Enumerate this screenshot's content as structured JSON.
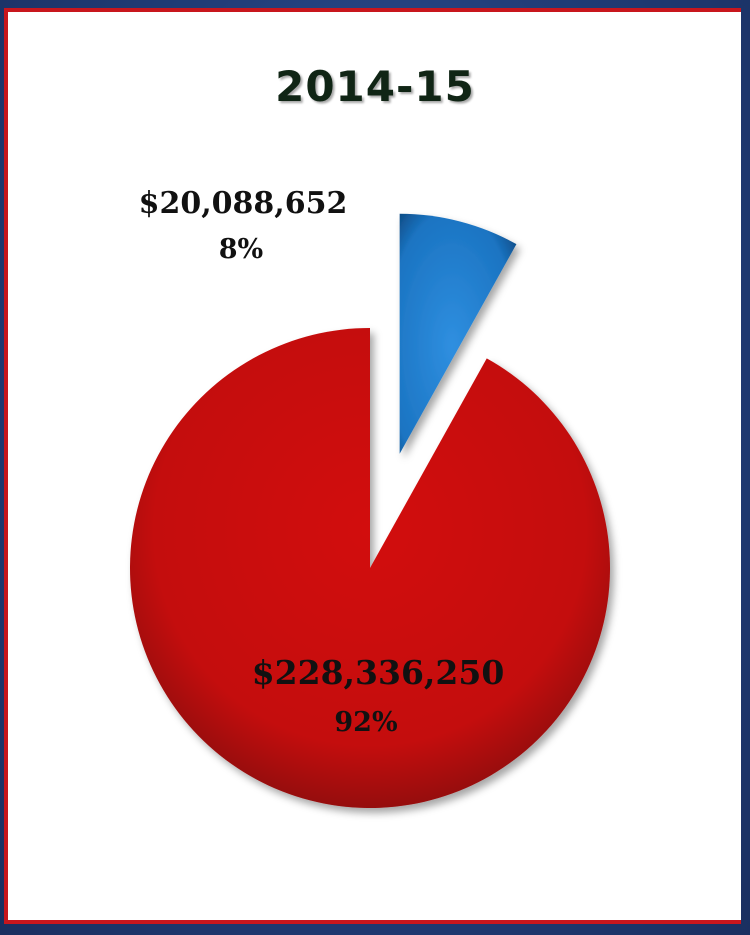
{
  "chart_data": {
    "type": "pie",
    "title": "2014-15",
    "slices": [
      {
        "amount_label": "$20,088,652",
        "percent_label": "8%",
        "value": 20088652,
        "percent": 8,
        "color": "#1a79c8",
        "exploded": true
      },
      {
        "amount_label": "$228,336,250",
        "percent_label": "92%",
        "value": 228336250,
        "percent": 92,
        "color": "#c80c0c",
        "exploded": false
      }
    ]
  },
  "colors": {
    "panel_border": "#c8161d",
    "background": "#24407a",
    "title": "#102515"
  }
}
